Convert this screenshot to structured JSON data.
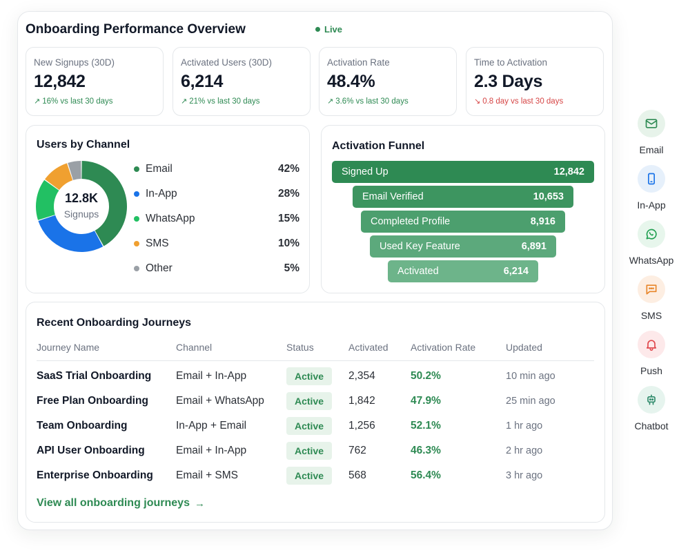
{
  "header": {
    "title": "Onboarding Performance Overview",
    "live_label": "Live"
  },
  "kpis": [
    {
      "label": "New Signups (30D)",
      "value": "12,842",
      "delta": "16% vs last 30 days",
      "trend": "up"
    },
    {
      "label": "Activated Users (30D)",
      "value": "6,214",
      "delta": "21% vs last 30 days",
      "trend": "up"
    },
    {
      "label": "Activation Rate",
      "value": "48.4%",
      "delta": "3.6% vs last 30 days",
      "trend": "up"
    },
    {
      "label": "Time to Activation",
      "value": "2.3 Days",
      "delta": "0.8 day vs last 30 days",
      "trend": "down"
    }
  ],
  "channels": {
    "title": "Users by Channel",
    "center_value": "12.8K",
    "center_label": "Signups",
    "items": [
      {
        "label": "Email",
        "pct": "42%",
        "value": 42,
        "color": "#2e8a53"
      },
      {
        "label": "In-App",
        "pct": "28%",
        "value": 28,
        "color": "#1a73e8"
      },
      {
        "label": "WhatsApp",
        "pct": "15%",
        "value": 15,
        "color": "#22c063"
      },
      {
        "label": "SMS",
        "pct": "10%",
        "value": 10,
        "color": "#f0a030"
      },
      {
        "label": "Other",
        "pct": "5%",
        "value": 5,
        "color": "#9aa0a6"
      }
    ]
  },
  "chart_data": {
    "type": "pie",
    "categories": [
      "Email",
      "In-App",
      "WhatsApp",
      "SMS",
      "Other"
    ],
    "values": [
      42,
      28,
      15,
      10,
      5
    ],
    "title": "Users by Channel"
  },
  "funnel": {
    "title": "Activation Funnel",
    "stages": [
      {
        "label": "Signed Up",
        "value": "12,842",
        "color": "#2e8a53"
      },
      {
        "label": "Email Verified",
        "value": "10,653",
        "color": "#3d9560"
      },
      {
        "label": "Completed Profile",
        "value": "8,916",
        "color": "#4c9f6e"
      },
      {
        "label": "Used Key Feature",
        "value": "6,891",
        "color": "#5ca97c"
      },
      {
        "label": "Activated",
        "value": "6,214",
        "color": "#6db48a"
      }
    ]
  },
  "journeys": {
    "title": "Recent Onboarding Journeys",
    "columns": [
      "Journey Name",
      "Channel",
      "Status",
      "Activated",
      "Activation Rate",
      "Updated"
    ],
    "rows": [
      {
        "name": "SaaS Trial Onboarding",
        "channel": "Email + In-App",
        "status": "Active",
        "activated": "2,354",
        "rate": "50.2%",
        "updated": "10 min ago"
      },
      {
        "name": "Free Plan Onboarding",
        "channel": "Email + WhatsApp",
        "status": "Active",
        "activated": "1,842",
        "rate": "47.9%",
        "updated": "25 min ago"
      },
      {
        "name": "Team Onboarding",
        "channel": "In-App + Email",
        "status": "Active",
        "activated": "1,256",
        "rate": "52.1%",
        "updated": "1 hr ago"
      },
      {
        "name": "API User Onboarding",
        "channel": "Email + In-App",
        "status": "Active",
        "activated": "762",
        "rate": "46.3%",
        "updated": "2 hr ago"
      },
      {
        "name": "Enterprise Onboarding",
        "channel": "Email + SMS",
        "status": "Active",
        "activated": "568",
        "rate": "56.4%",
        "updated": "3 hr ago"
      }
    ],
    "view_all_label": "View all onboarding journeys"
  },
  "side_channels": [
    {
      "label": "Email",
      "icon": "mail-icon",
      "bg": "#e7f3ea",
      "fg": "#2e8a53"
    },
    {
      "label": "In-App",
      "icon": "phone-icon",
      "bg": "#e6f0fb",
      "fg": "#1a73e8"
    },
    {
      "label": "WhatsApp",
      "icon": "whatsapp-icon",
      "bg": "#e7f6ec",
      "fg": "#22a052"
    },
    {
      "label": "SMS",
      "icon": "chat-bubble-icon",
      "bg": "#fdeee2",
      "fg": "#e8862a"
    },
    {
      "label": "Push",
      "icon": "bell-icon",
      "bg": "#fde9ea",
      "fg": "#e0474c"
    },
    {
      "label": "Chatbot",
      "icon": "robot-icon",
      "bg": "#e6f4ee",
      "fg": "#2e8a6a"
    }
  ]
}
